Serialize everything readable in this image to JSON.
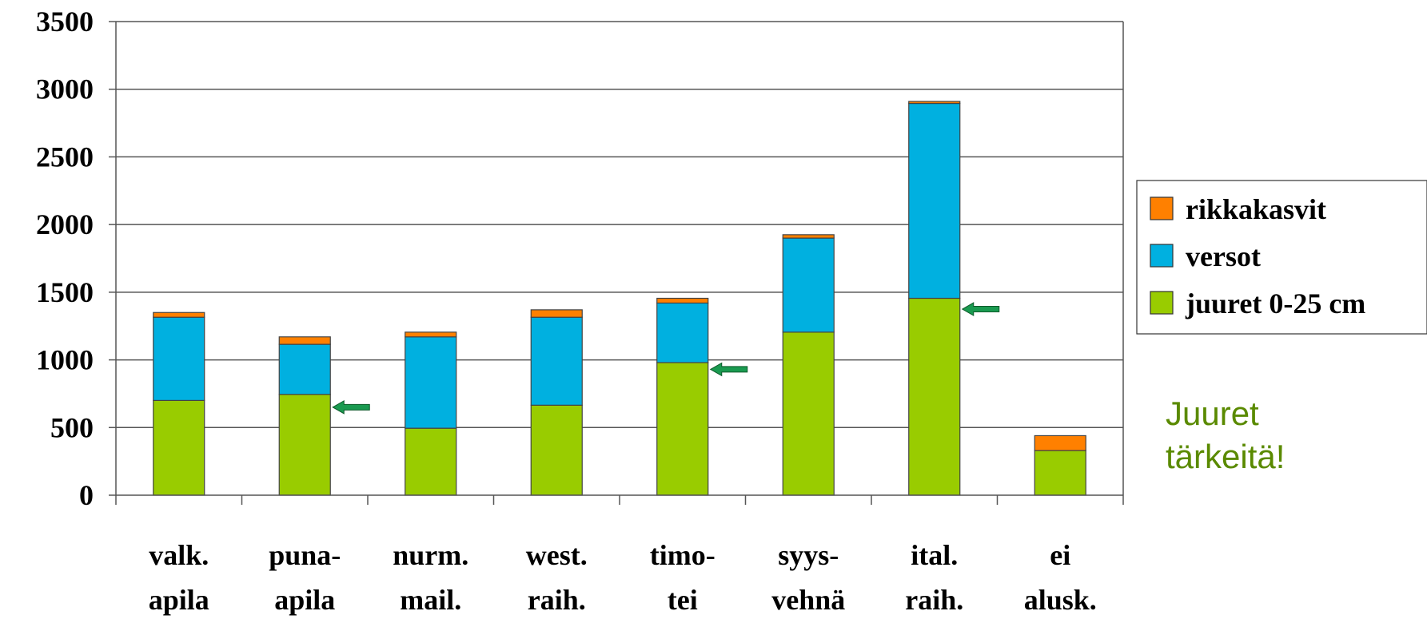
{
  "chart_data": {
    "type": "bar",
    "stacked": true,
    "categories": [
      [
        "valk.",
        "apila"
      ],
      [
        "puna-",
        "apila"
      ],
      [
        "nurm.",
        "mail."
      ],
      [
        "west.",
        "raih."
      ],
      [
        "timo-",
        "tei"
      ],
      [
        "syys-",
        "vehnä"
      ],
      [
        "ital.",
        "raih."
      ],
      [
        "ei",
        "alusk."
      ]
    ],
    "series": [
      {
        "name": "juuret 0-25 cm",
        "color": "#99cc00",
        "values": [
          700,
          745,
          495,
          665,
          980,
          1205,
          1455,
          330
        ]
      },
      {
        "name": "versot",
        "color": "#00b0e0",
        "values": [
          615,
          370,
          675,
          650,
          440,
          695,
          1440,
          0
        ]
      },
      {
        "name": "rikkakasvit",
        "color": "#ff8000",
        "values": [
          35,
          55,
          35,
          55,
          35,
          25,
          15,
          110
        ]
      }
    ],
    "legend_order": [
      "rikkakasvit",
      "versot",
      "juuret 0-25 cm"
    ],
    "ylim": [
      0,
      3500
    ],
    "yticks": [
      0,
      500,
      1000,
      1500,
      2000,
      2500,
      3000,
      3500
    ],
    "grid": true,
    "legend_position": "right",
    "arrows": [
      {
        "category_index": 1,
        "y": 650,
        "color": "#1a9a50"
      },
      {
        "category_index": 4,
        "y": 930,
        "color": "#1a9a50"
      },
      {
        "category_index": 6,
        "y": 1375,
        "color": "#1a9a50"
      }
    ],
    "annotation": {
      "lines": [
        "Juuret",
        "tärkeitä!"
      ],
      "color": "#5a8a00"
    }
  }
}
